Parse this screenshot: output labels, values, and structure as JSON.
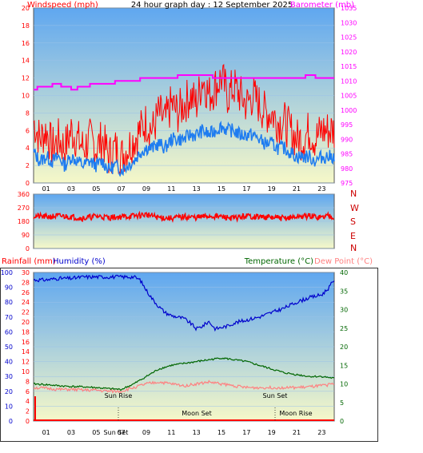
{
  "colors": {
    "wind": "#ff0000",
    "gust_avg": "#1e7cf0",
    "barometer": "#ff00ff",
    "winddir": "#ff0000",
    "direction_letters": "#cc0000",
    "rainfall": "#ff0000",
    "humidity": "#0000cc",
    "temperature": "#006600",
    "dewpoint": "#ff8080",
    "sky_top": "#5fa7f0",
    "sky_bottom": "#f6f8c8"
  },
  "header": {
    "title": "24 hour graph day : 12 September 2025"
  },
  "chart_data": [
    {
      "type": "line",
      "id": "wind_baro",
      "title": "24 hour graph day : 12 September 2025",
      "ylabel_left": "Windspeed (mph)",
      "ylabel_right": "Barometer (mb)",
      "ylim_left": [
        0,
        20
      ],
      "ylim_right": [
        975,
        1035
      ],
      "yticks_left": [
        "0",
        "2",
        "4",
        "6",
        "8",
        "10",
        "12",
        "14",
        "16",
        "18",
        "20"
      ],
      "yticks_right": [
        "975",
        "980",
        "985",
        "990",
        "995",
        "1000",
        "1005",
        "1010",
        "1015",
        "1020",
        "1025",
        "1030",
        "1035"
      ],
      "xlim": [
        0,
        24
      ],
      "xticks": [
        "01",
        "03",
        "05",
        "07",
        "09",
        "11",
        "13",
        "15",
        "17",
        "19",
        "21",
        "23"
      ],
      "series": [
        {
          "name": "Windspeed (mph)",
          "key": "gust",
          "x": [
            0,
            0.5,
            1,
            1.5,
            2,
            2.5,
            3,
            3.5,
            4,
            4.5,
            5,
            5.5,
            6,
            6.5,
            7,
            7.5,
            8,
            8.5,
            9,
            9.5,
            10,
            10.5,
            11,
            11.5,
            12,
            12.5,
            13,
            13.5,
            14,
            14.5,
            15,
            15.5,
            16,
            16.5,
            17,
            17.5,
            18,
            18.5,
            19,
            19.5,
            20,
            20.5,
            21,
            21.5,
            22,
            22.5,
            23,
            23.5
          ],
          "values": [
            7,
            5,
            6,
            4,
            5,
            4,
            6,
            5,
            4,
            5,
            4,
            5,
            3,
            4,
            3,
            4,
            5,
            6,
            7,
            6,
            8,
            7,
            9,
            8,
            9,
            10,
            9,
            12,
            10,
            11,
            12,
            10,
            11,
            10,
            9,
            10,
            9,
            8,
            8,
            7,
            7,
            6,
            5,
            5,
            6,
            5,
            6,
            6
          ]
        },
        {
          "name": "",
          "key": "avg",
          "x": [
            0,
            0.5,
            1,
            1.5,
            2,
            2.5,
            3,
            3.5,
            4,
            4.5,
            5,
            5.5,
            6,
            6.5,
            7,
            7.5,
            8,
            8.5,
            9,
            9.5,
            10,
            10.5,
            11,
            11.5,
            12,
            12.5,
            13,
            13.5,
            14,
            14.5,
            15,
            15.5,
            16,
            16.5,
            17,
            17.5,
            18,
            18.5,
            19,
            19.5,
            20,
            20.5,
            21,
            21.5,
            22,
            22.5,
            23,
            23.5
          ],
          "values": [
            3.5,
            2.5,
            3,
            2.5,
            3,
            2,
            3,
            2.5,
            2,
            2.5,
            2,
            2.5,
            1.5,
            2,
            1.5,
            2,
            2.5,
            3.5,
            4,
            4,
            4.5,
            4,
            5,
            5,
            5,
            5.5,
            5.5,
            6,
            5.5,
            6,
            6.5,
            6,
            6,
            5.5,
            5.5,
            5.5,
            5,
            4.5,
            4.5,
            4,
            4,
            3.5,
            3,
            3,
            3,
            2.5,
            3,
            3
          ]
        },
        {
          "name": "Barometer (mb)",
          "key": "baro",
          "x": [
            0,
            0.3,
            0.8,
            1.5,
            2.2,
            3,
            3.5,
            4.5,
            5.5,
            6.5,
            7.5,
            8.5,
            9.5,
            10.5,
            11.5,
            12.5,
            13.5,
            14.3,
            15,
            16,
            17,
            18,
            19,
            20,
            21,
            21.7,
            22.5,
            23,
            24
          ],
          "values": [
            1007,
            1008,
            1008,
            1009,
            1008,
            1007,
            1008,
            1009,
            1009,
            1010,
            1010,
            1011,
            1011,
            1011,
            1012,
            1012,
            1012,
            1011,
            1011,
            1011,
            1011,
            1011,
            1011,
            1011,
            1011,
            1012,
            1011,
            1011,
            1011
          ]
        }
      ]
    },
    {
      "type": "line",
      "id": "wind_direction",
      "ylim": [
        0,
        360
      ],
      "yticks": [
        "0",
        "90",
        "180",
        "270",
        "360"
      ],
      "direction_labels": [
        "N",
        "W",
        "S",
        "E",
        "N"
      ],
      "series": [
        {
          "name": "",
          "key": "dir",
          "x": [
            0,
            1,
            2,
            3,
            4,
            5,
            6,
            7,
            8,
            9,
            10,
            11,
            12,
            13,
            14,
            15,
            16,
            17,
            18,
            19,
            20,
            21,
            22,
            23,
            23.5,
            24
          ],
          "values": [
            215,
            210,
            215,
            210,
            200,
            215,
            205,
            210,
            215,
            225,
            205,
            200,
            210,
            205,
            215,
            210,
            200,
            215,
            210,
            205,
            200,
            210,
            215,
            205,
            220,
            210
          ]
        }
      ]
    },
    {
      "type": "line",
      "id": "rain_hum_temp",
      "ylabel_rain": "Rainfall (mm)",
      "ylabel_hum": "Humidity (%)",
      "ylabel_temp": "Temperature (°C)",
      "ylabel_dew": "Dew Point (°C)",
      "ylim_rain": [
        0,
        30
      ],
      "ylim_hum": [
        0,
        100
      ],
      "ylim_temp": [
        0,
        40
      ],
      "yticks_hum": [
        "0",
        "10",
        "20",
        "30",
        "40",
        "50",
        "60",
        "70",
        "80",
        "90",
        "100"
      ],
      "yticks_rain": [
        "0",
        "2",
        "4",
        "6",
        "8",
        "10",
        "12",
        "14",
        "16",
        "18",
        "20",
        "22",
        "24",
        "26",
        "28",
        "30"
      ],
      "yticks_temp": [
        "0",
        "5",
        "10",
        "15",
        "20",
        "25",
        "30",
        "35",
        "40"
      ],
      "xticks": [
        "01",
        "03",
        "05",
        "07",
        "09",
        "11",
        "13",
        "15",
        "17",
        "19",
        "21",
        "23"
      ],
      "series": [
        {
          "name": "Humidity (%)",
          "key": "hum",
          "x": [
            0,
            1,
            2,
            3,
            4,
            5,
            6,
            7,
            8,
            8.5,
            9,
            9.5,
            10,
            10.5,
            11,
            11.5,
            12,
            12.5,
            13,
            13.5,
            14,
            14.5,
            15,
            15.5,
            16,
            17,
            18,
            19,
            20,
            21,
            22,
            22.5,
            23,
            23.5,
            24
          ],
          "values": [
            95,
            95,
            96,
            96,
            97,
            97,
            97,
            97,
            97,
            95,
            88,
            82,
            77,
            73,
            71,
            70,
            69,
            66,
            62,
            64,
            67,
            62,
            63,
            64,
            66,
            68,
            70,
            73,
            76,
            80,
            83,
            84,
            85,
            89,
            95
          ]
        },
        {
          "name": "Temperature (°C)",
          "key": "temp",
          "x": [
            0,
            1,
            2,
            3,
            4,
            5,
            6,
            7,
            8,
            9,
            10,
            11,
            12,
            13,
            14,
            15,
            16,
            17,
            18,
            19,
            20,
            21,
            22,
            23,
            24
          ],
          "values": [
            10,
            9.8,
            9.5,
            9.3,
            9.2,
            9,
            8.7,
            8.5,
            10,
            12,
            14,
            15,
            15.5,
            16,
            16.5,
            17,
            16.5,
            16,
            15,
            14,
            13,
            12.5,
            12,
            12,
            11.5
          ]
        },
        {
          "name": "Dew Point (°C)",
          "key": "dew",
          "x": [
            0,
            1,
            2,
            3,
            4,
            5,
            6,
            7,
            8,
            9,
            10,
            11,
            12,
            13,
            14,
            15,
            16,
            17,
            18,
            19,
            20,
            21,
            22,
            23,
            24
          ],
          "values": [
            9,
            8.8,
            8.5,
            8.5,
            8.3,
            8.3,
            8,
            8,
            9,
            10,
            10.5,
            10,
            9.5,
            10,
            10.5,
            10,
            9.5,
            9,
            9,
            9,
            9,
            9,
            9.2,
            9.5,
            10
          ]
        }
      ],
      "rainfall": [
        {
          "x": 0,
          "value": 5
        }
      ],
      "annotations": {
        "sun_rise_1": "Sun Rise",
        "sun_rise_2": "Sun Set",
        "moon_set": "Moon Set",
        "moon_rise": "Moon Rise",
        "sun_set": "Sun Set"
      }
    }
  ]
}
